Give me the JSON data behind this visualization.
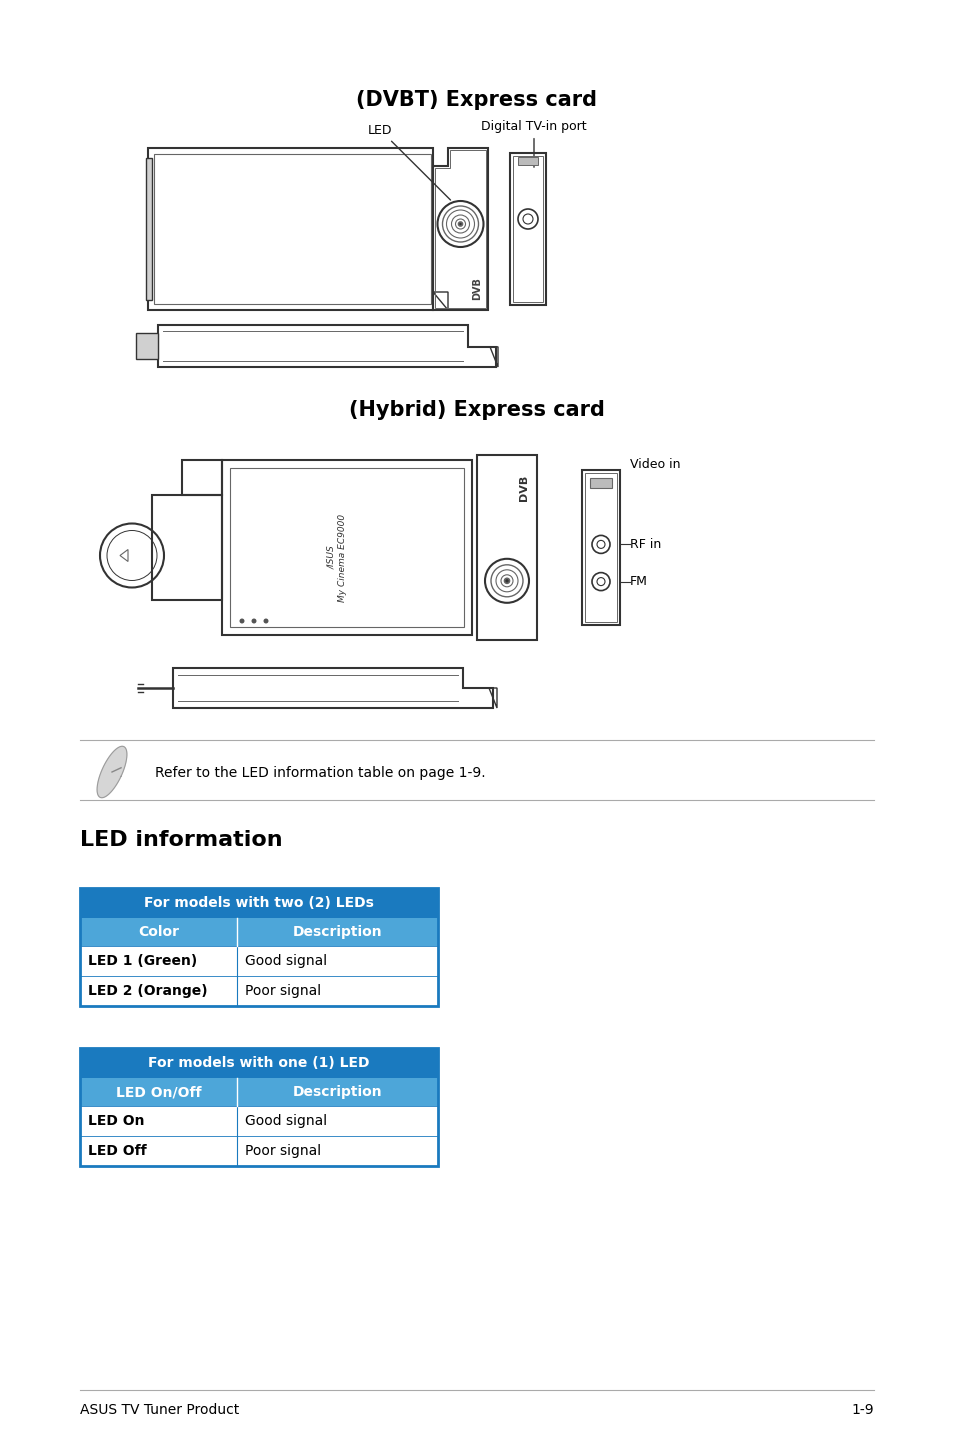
{
  "title_dvbt": "(DVBT) Express card",
  "title_hybrid": "(Hybrid) Express card",
  "led_section_title": "LED information",
  "table1_header": "For models with two (2) LEDs",
  "table1_col1": "Color",
  "table1_col2": "Description",
  "table1_rows": [
    [
      "LED 1 (Green)",
      "Good signal"
    ],
    [
      "LED 2 (Orange)",
      "Poor signal"
    ]
  ],
  "table2_header": "For models with one (1) LED",
  "table2_col1": "LED On/Off",
  "table2_col2": "Description",
  "table2_rows": [
    [
      "LED On",
      "Good signal"
    ],
    [
      "LED Off",
      "Poor signal"
    ]
  ],
  "note_text": "Refer to the LED information table on page 1-9.",
  "footer_left": "ASUS TV Tuner Product",
  "footer_right": "1-9",
  "header_blue": "#1a7abf",
  "subheader_blue": "#4da6d9",
  "row_white": "#ffffff",
  "text_white": "#ffffff",
  "text_black": "#000000",
  "bg_white": "#ffffff",
  "border_blue": "#1a7abf",
  "line_color": "#333333",
  "inner_color": "#666666"
}
